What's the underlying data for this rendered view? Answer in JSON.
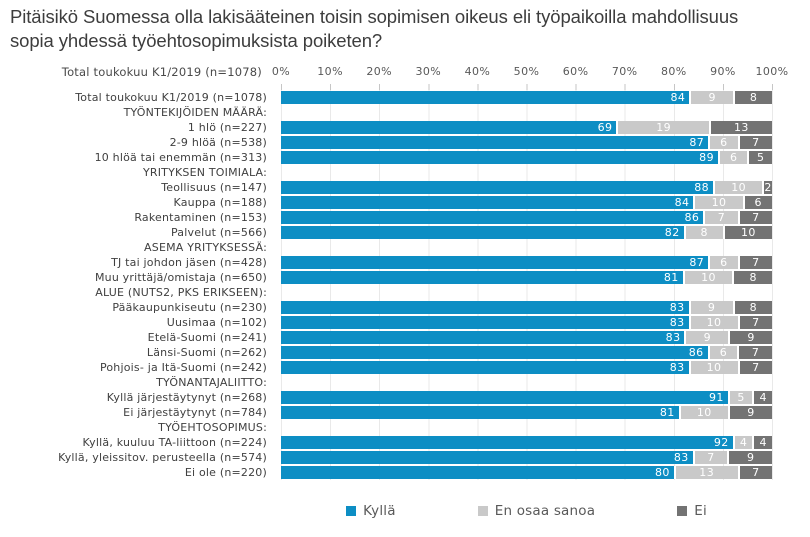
{
  "title": "Pitäisikö Suomessa olla lakisääteinen toisin sopimisen oikeus eli työpaikoilla mahdollisuus sopia yhdessä työehtosopimuksista poiketen?",
  "chart_data": {
    "type": "bar",
    "subtype": "horizontal-stacked-percent",
    "axis_header_label": "Total toukokuu K1/2019  (n=1078)",
    "x_tick_labels": [
      "0%",
      "10%",
      "20%",
      "30%",
      "40%",
      "50%",
      "60%",
      "70%",
      "80%",
      "90%",
      "100%"
    ],
    "xlim": [
      0,
      100
    ],
    "grid": true,
    "legend_position": "bottom",
    "colors": {
      "kylla": "#0d8ec4",
      "en_osaa_sanoa": "#c9c9c9",
      "ei": "#737373",
      "gridline": "#e9e9e9",
      "label_text": "#404040",
      "value_text": "#ffffff"
    },
    "series": [
      {
        "key": "kylla",
        "name": "Kyllä",
        "color": "#0d8ec4"
      },
      {
        "key": "en-osaa-sanoa",
        "name": "En osaa sanoa",
        "color": "#c9c9c9"
      },
      {
        "key": "ei",
        "name": "Ei",
        "color": "#737373"
      }
    ],
    "rows": [
      {
        "label": "Total toukokuu K1/2019 (n=1078)",
        "values": [
          84,
          9,
          8
        ]
      },
      {
        "label": "TYÖNTEKIJÖIDEN MÄÄRÄ:",
        "header": true
      },
      {
        "label": "1 hlö (n=227)",
        "values": [
          69,
          19,
          13
        ]
      },
      {
        "label": "2-9 hlöä (n=538)",
        "values": [
          87,
          6,
          7
        ]
      },
      {
        "label": "10 hlöä tai enemmän (n=313)",
        "values": [
          89,
          6,
          5
        ]
      },
      {
        "label": "YRITYKSEN TOIMIALA:",
        "header": true
      },
      {
        "label": "Teollisuus (n=147)",
        "values": [
          88,
          10,
          2
        ]
      },
      {
        "label": "Kauppa (n=188)",
        "values": [
          84,
          10,
          6
        ]
      },
      {
        "label": "Rakentaminen (n=153)",
        "values": [
          86,
          7,
          7
        ]
      },
      {
        "label": "Palvelut (n=566)",
        "values": [
          82,
          8,
          10
        ]
      },
      {
        "label": "ASEMA YRITYKSESSÄ:",
        "header": true
      },
      {
        "label": "TJ tai johdon jäsen (n=428)",
        "values": [
          87,
          6,
          7
        ]
      },
      {
        "label": "Muu yrittäjä/omistaja (n=650)",
        "values": [
          81,
          10,
          8
        ]
      },
      {
        "label": "ALUE (NUTS2, PKS ERIKSEEN):",
        "header": true
      },
      {
        "label": "Pääkaupunkiseutu (n=230)",
        "values": [
          83,
          9,
          8
        ]
      },
      {
        "label": "Uusimaa (n=102)",
        "values": [
          83,
          10,
          7
        ]
      },
      {
        "label": "Etelä-Suomi (n=241)",
        "values": [
          83,
          9,
          9
        ]
      },
      {
        "label": "Länsi-Suomi (n=262)",
        "values": [
          86,
          6,
          7
        ]
      },
      {
        "label": "Pohjois- ja Itä-Suomi (n=242)",
        "values": [
          83,
          10,
          7
        ]
      },
      {
        "label": "TYÖNANTAJALIITTO:",
        "header": true
      },
      {
        "label": "Kyllä järjestäytynyt (n=268)",
        "values": [
          91,
          5,
          4
        ]
      },
      {
        "label": "Ei järjestäytynyt (n=784)",
        "values": [
          81,
          10,
          9
        ]
      },
      {
        "label": "TYÖEHTOSOPIMUS:",
        "header": true
      },
      {
        "label": "Kyllä, kuuluu TA-liittoon (n=224)",
        "values": [
          92,
          4,
          4
        ]
      },
      {
        "label": "Kyllä, yleissitov. perusteella (n=574)",
        "values": [
          83,
          7,
          9
        ]
      },
      {
        "label": "Ei ole (n=220)",
        "values": [
          80,
          13,
          7
        ]
      }
    ]
  }
}
